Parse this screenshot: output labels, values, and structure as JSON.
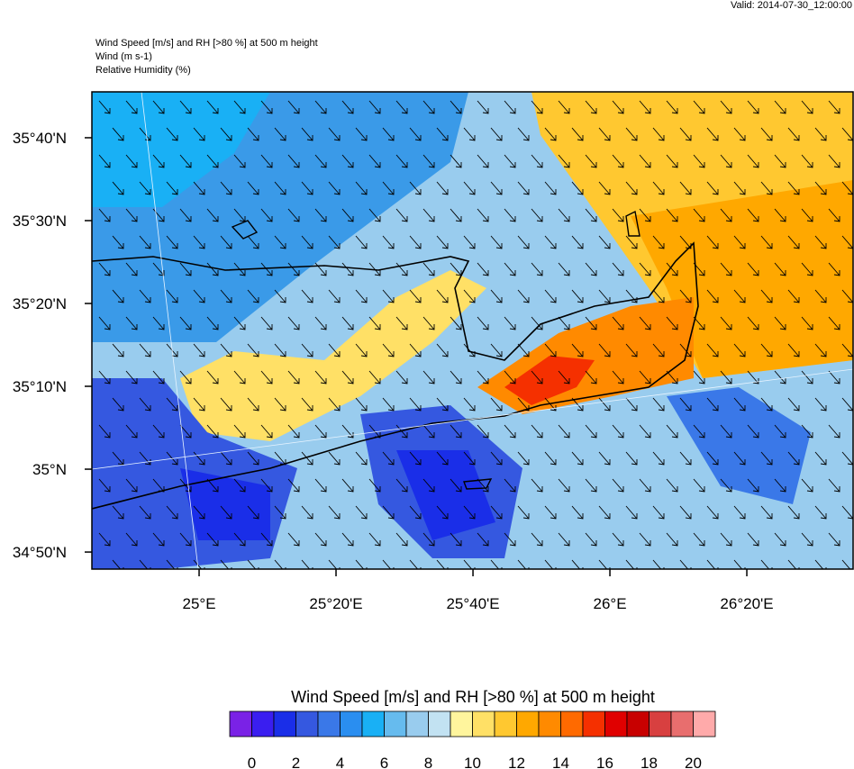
{
  "valid": "Valid: 2014-07-30_12:00:00",
  "header": [
    "Wind Speed [m/s] and RH [>80 %] at 500 m height",
    "Wind   (m s-1)",
    "Relative Humidity   (%)"
  ],
  "map": {
    "xlim": [
      24.739,
      26.592
    ],
    "ylim": [
      34.799,
      35.759
    ],
    "xticks": [
      {
        "value": 25,
        "label": "25°E"
      },
      {
        "value": 25.3333,
        "label": "25°20'E"
      },
      {
        "value": 25.6667,
        "label": "25°40'E"
      },
      {
        "value": 26,
        "label": "26°E"
      },
      {
        "value": 26.3333,
        "label": "26°20'E"
      }
    ],
    "yticks": [
      {
        "value": 34.8333,
        "label": "34°50'N"
      },
      {
        "value": 35,
        "label": "35°N"
      },
      {
        "value": 35.1667,
        "label": "35°10'N"
      },
      {
        "value": 35.3333,
        "label": "35°20'N"
      },
      {
        "value": 35.5,
        "label": "35°30'N"
      },
      {
        "value": 35.6667,
        "label": "35°40'N"
      }
    ]
  },
  "colorbar": {
    "title": "Wind Speed [m/s] and RH [>80 %] at 500 m height",
    "ticks": [
      0,
      2,
      4,
      6,
      8,
      10,
      12,
      14,
      16,
      18,
      20
    ],
    "colors": [
      "#7a22e6",
      "#3a1ef0",
      "#1a2ee8",
      "#3558e0",
      "#3a78e8",
      "#2a8ef0",
      "#19b0f5",
      "#66bbee",
      "#99ccee",
      "#c2e2f2",
      "#fff59d",
      "#ffe066",
      "#ffc830",
      "#ffa800",
      "#ff8a00",
      "#ff6a00",
      "#f53000",
      "#e00000",
      "#c80000",
      "#d84040",
      "#e86e6e",
      "#ffaaaa"
    ]
  }
}
